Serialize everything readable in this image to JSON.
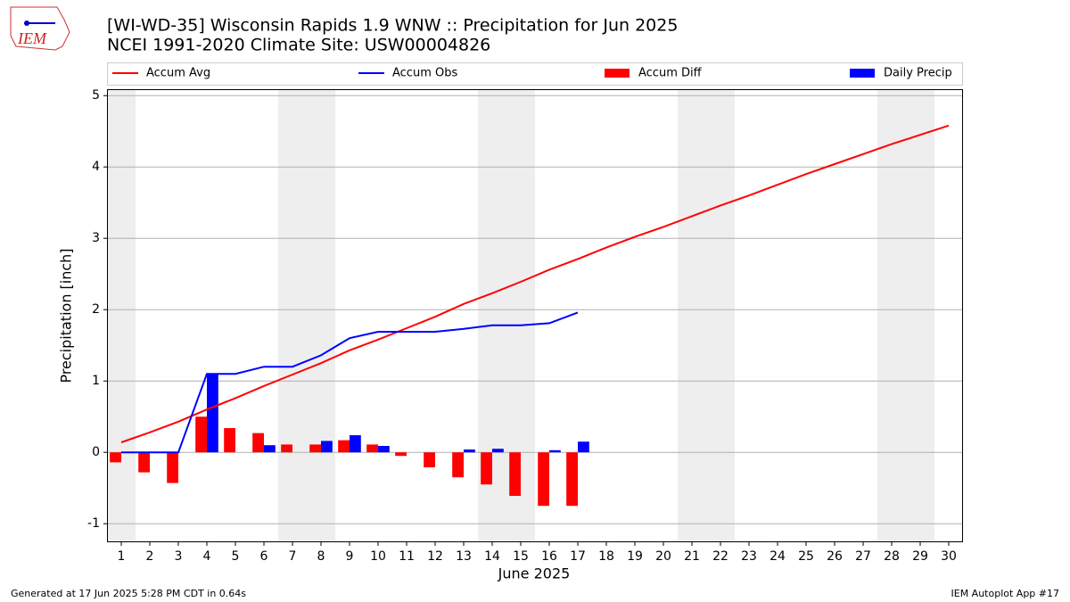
{
  "logo_text": "IEM",
  "footer_left": "Generated at 17 Jun 2025 5:28 PM CDT in 0.64s",
  "footer_right": "IEM Autoplot App #17",
  "chart_data": {
    "type": "line",
    "title": "[WI-WD-35] Wisconsin Rapids 1.9 WNW :: Precipitation for Jun 2025",
    "subtitle": "NCEI 1991-2020 Climate Site: USW00004826",
    "x_label": "June 2025",
    "y_label": "Precipitation [inch]",
    "x": [
      1,
      2,
      3,
      4,
      5,
      6,
      7,
      8,
      9,
      10,
      11,
      12,
      13,
      14,
      15,
      16,
      17,
      18,
      19,
      20,
      21,
      22,
      23,
      24,
      25,
      26,
      27,
      28,
      29,
      30
    ],
    "xlim": [
      0.5,
      30.5
    ],
    "xticks": [
      1,
      2,
      3,
      4,
      5,
      6,
      7,
      8,
      9,
      10,
      11,
      12,
      13,
      14,
      15,
      16,
      17,
      18,
      19,
      20,
      21,
      22,
      23,
      24,
      25,
      26,
      27,
      28,
      29,
      30
    ],
    "ylim": [
      -1.26,
      5.09
    ],
    "yticks": [
      -1,
      0,
      1,
      2,
      3,
      4,
      5
    ],
    "grid": true,
    "shaded_days": [
      1,
      7,
      8,
      14,
      15,
      21,
      22,
      28,
      29
    ],
    "shade_color": "#eeeeee",
    "series": [
      {
        "name": "Accum Avg",
        "kind": "line",
        "color": "#ff0000",
        "values": [
          0.14,
          0.28,
          0.43,
          0.6,
          0.76,
          0.93,
          1.09,
          1.25,
          1.43,
          1.58,
          1.74,
          1.9,
          2.08,
          2.23,
          2.39,
          2.56,
          2.71,
          2.87,
          3.02,
          3.16,
          3.31,
          3.46,
          3.6,
          3.75,
          3.9,
          4.04,
          4.18,
          4.32,
          4.45,
          4.58
        ]
      },
      {
        "name": "Accum Obs",
        "kind": "line",
        "color": "#0000ff",
        "values": [
          0,
          0,
          0,
          1.1,
          1.1,
          1.2,
          1.2,
          1.36,
          1.6,
          1.69,
          1.69,
          1.69,
          1.73,
          1.78,
          1.78,
          1.81,
          1.96,
          null,
          null,
          null,
          null,
          null,
          null,
          null,
          null,
          null,
          null,
          null,
          null,
          null
        ]
      },
      {
        "name": "Accum Diff",
        "kind": "bar",
        "color": "#ff0000",
        "values": [
          -0.14,
          -0.28,
          -0.43,
          0.5,
          0.34,
          0.27,
          0.11,
          0.11,
          0.17,
          0.11,
          -0.05,
          -0.21,
          -0.35,
          -0.45,
          -0.61,
          -0.75,
          -0.75,
          null,
          null,
          null,
          null,
          null,
          null,
          null,
          null,
          null,
          null,
          null,
          null,
          null
        ]
      },
      {
        "name": "Daily Precip",
        "kind": "bar",
        "color": "#0000ff",
        "values": [
          0,
          0,
          0,
          1.1,
          0,
          0.1,
          0,
          0.16,
          0.24,
          0.09,
          0,
          0,
          0.04,
          0.05,
          0,
          0.03,
          0.15,
          null,
          null,
          null,
          null,
          null,
          null,
          null,
          null,
          null,
          null,
          null,
          null,
          null
        ]
      }
    ]
  }
}
